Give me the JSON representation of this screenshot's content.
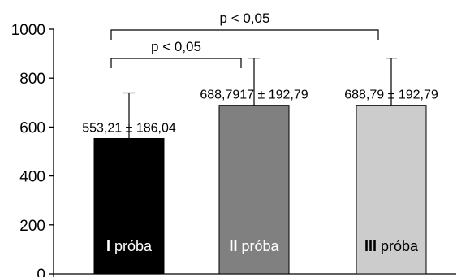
{
  "chart_data": {
    "type": "bar",
    "title": "",
    "xlabel": "",
    "ylabel": "",
    "ylim": [
      0,
      1000
    ],
    "yticks": [
      0,
      200,
      400,
      600,
      800,
      1000
    ],
    "categories": [
      "I próba",
      "II próba",
      "III próba"
    ],
    "category_parts": [
      {
        "numeral": "I",
        "word": " próba"
      },
      {
        "numeral": "II",
        "word": " próba"
      },
      {
        "numeral": "III",
        "word": " próba"
      }
    ],
    "values": [
      553.21,
      688.79,
      688.79
    ],
    "errors": [
      186.04,
      192.79,
      192.79
    ],
    "value_labels": [
      "553,21 ± 186,04",
      "688,7917 ± 192,79",
      "688,79 ± 192,79"
    ],
    "colors": [
      "#000000",
      "#808080",
      "#cccccc"
    ],
    "label_colors": [
      "#ffffff",
      "#ffffff",
      "#000000"
    ],
    "significance": [
      {
        "from": 0,
        "to": 1,
        "label": "p < 0,05"
      },
      {
        "from": 0,
        "to": 2,
        "label": "p < 0,05"
      }
    ],
    "grid": false,
    "legend": "none"
  }
}
